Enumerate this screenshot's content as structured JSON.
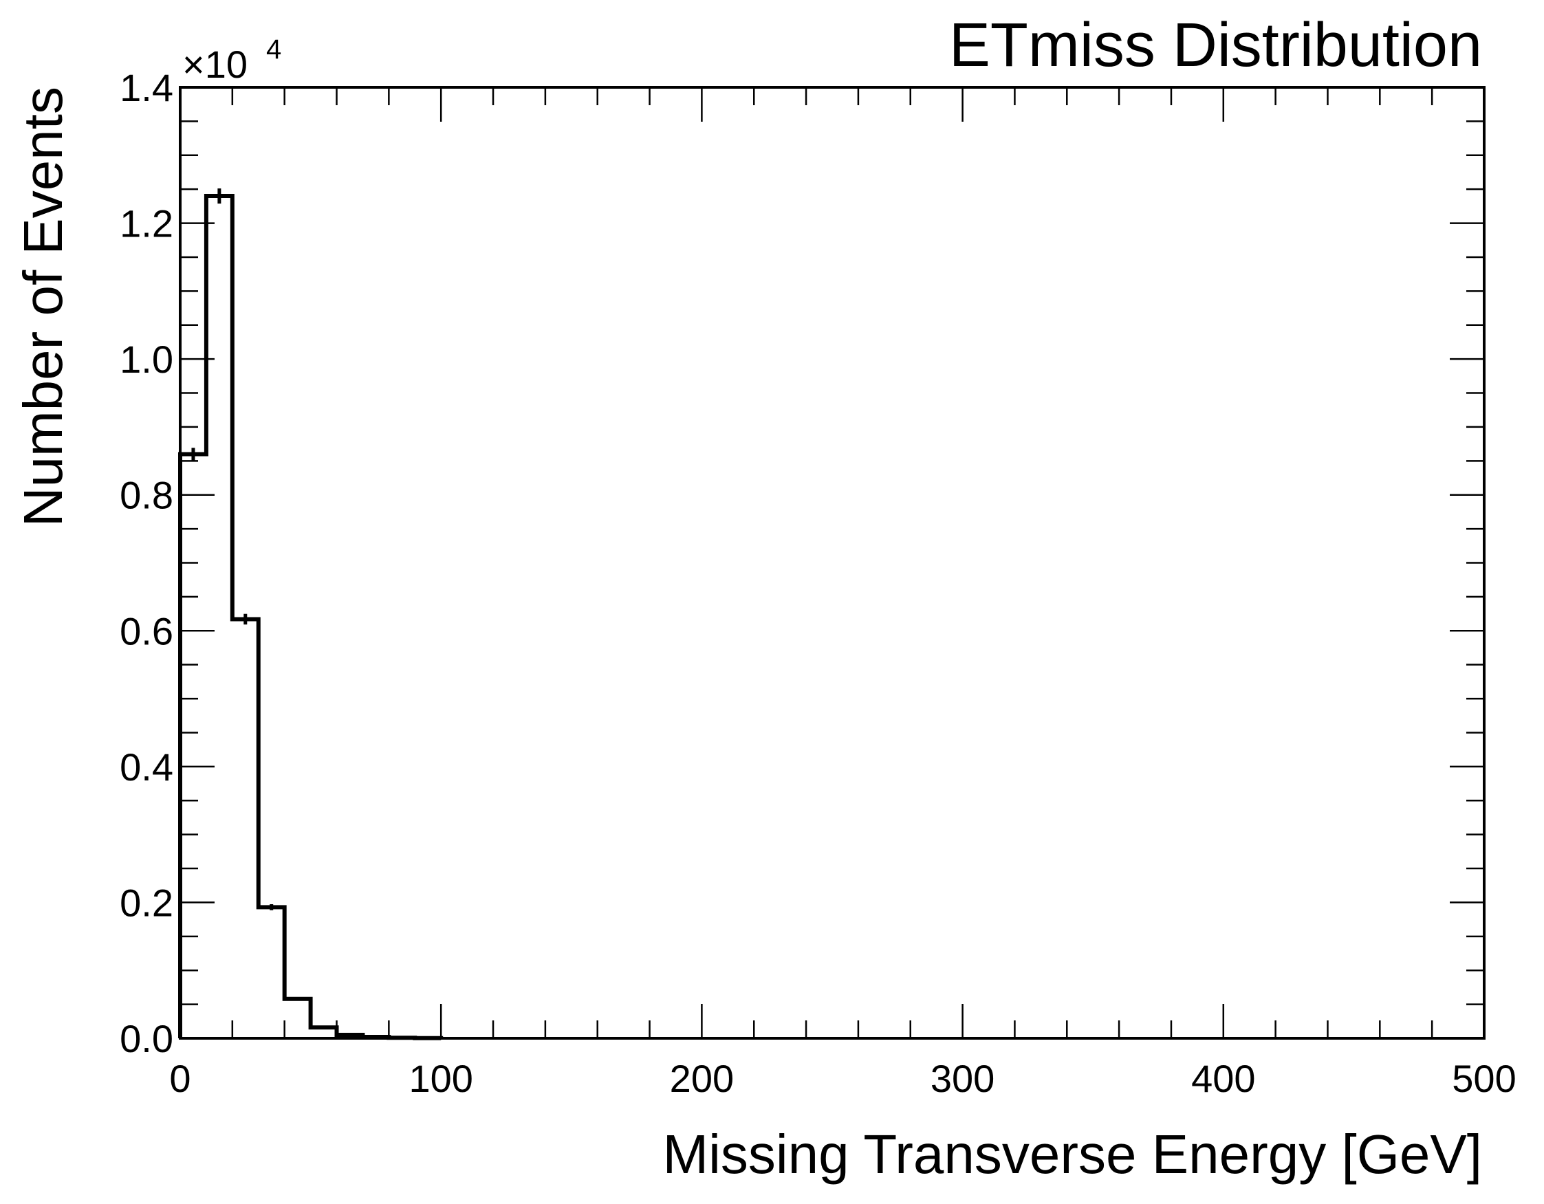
{
  "chart_data": {
    "type": "histogram",
    "title": "ETmiss Distribution",
    "xlabel": "Missing Transverse Energy [GeV]",
    "ylabel": "Number of Events",
    "y_multiplier_label": "×10",
    "y_multiplier_exponent": "4",
    "y_scale_factor": 10000,
    "xlim": [
      0,
      500
    ],
    "ylim": [
      0,
      14000
    ],
    "x_ticks": [
      0,
      100,
      200,
      300,
      400,
      500
    ],
    "x_tick_labels": [
      "0",
      "100",
      "200",
      "300",
      "400",
      "500"
    ],
    "x_minor_step": 20,
    "y_ticks": [
      0,
      2000,
      4000,
      6000,
      8000,
      10000,
      12000,
      14000
    ],
    "y_tick_labels": [
      "0.0",
      "0.2",
      "0.4",
      "0.6",
      "0.8",
      "1.0",
      "1.2",
      "1.4"
    ],
    "y_minor_step": 500,
    "grid": false,
    "legend": "none",
    "bin_width": 10,
    "bin_edges": [
      0,
      10,
      20,
      30,
      40,
      50,
      60,
      70,
      80,
      90,
      100
    ],
    "counts": [
      8600,
      12400,
      6170,
      1930,
      580,
      160,
      50,
      20,
      8,
      3
    ],
    "error_bars": true,
    "color": "#000000"
  }
}
